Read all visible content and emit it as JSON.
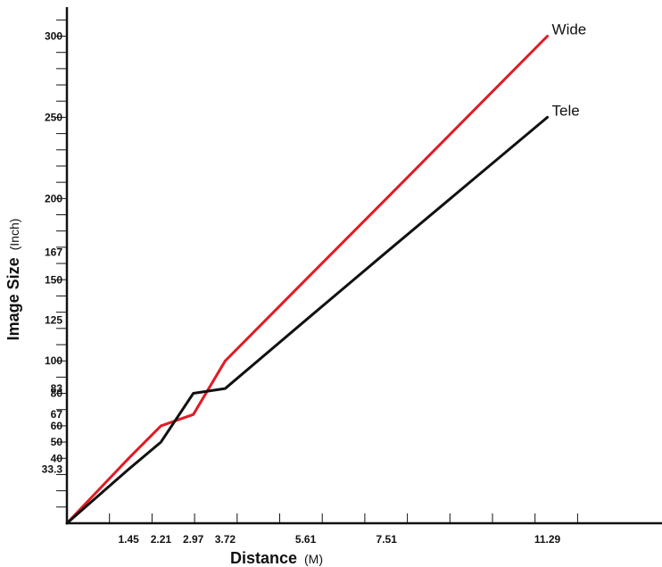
{
  "chart_data": {
    "type": "line",
    "title": "",
    "xlabel": "Distance",
    "xlabel_unit": "(M)",
    "ylabel": "Image Size",
    "ylabel_unit": "(Inch)",
    "xlim": [
      0,
      13.6
    ],
    "ylim": [
      0,
      315
    ],
    "x_tick_labels": [
      {
        "value": 1.45,
        "label": "1.45"
      },
      {
        "value": 2.21,
        "label": "2.21"
      },
      {
        "value": 2.97,
        "label": "2.97"
      },
      {
        "value": 3.72,
        "label": "3.72"
      },
      {
        "value": 5.61,
        "label": "5.61"
      },
      {
        "value": 7.51,
        "label": "7.51"
      },
      {
        "value": 11.29,
        "label": "11.29"
      }
    ],
    "x_minor_ticks": [
      1,
      2,
      3,
      4,
      5,
      6,
      7,
      8,
      9,
      10,
      11,
      12
    ],
    "y_tick_labels": [
      {
        "value": 33.3,
        "label": "33.3"
      },
      {
        "value": 40,
        "label": "40"
      },
      {
        "value": 50,
        "label": "50"
      },
      {
        "value": 60,
        "label": "60"
      },
      {
        "value": 67,
        "label": "67"
      },
      {
        "value": 80,
        "label": "80"
      },
      {
        "value": 83,
        "label": "83"
      },
      {
        "value": 100,
        "label": "100"
      },
      {
        "value": 125,
        "label": "125"
      },
      {
        "value": 150,
        "label": "150"
      },
      {
        "value": 167,
        "label": "167"
      },
      {
        "value": 200,
        "label": "200"
      },
      {
        "value": 250,
        "label": "250"
      },
      {
        "value": 300,
        "label": "300"
      }
    ],
    "y_minor_ticks": [
      10,
      20,
      30,
      40,
      50,
      60,
      70,
      80,
      90,
      100,
      110,
      120,
      130,
      140,
      150,
      160,
      170,
      180,
      190,
      200,
      210,
      220,
      230,
      240,
      250,
      260,
      270,
      280,
      290,
      300,
      310
    ],
    "series": [
      {
        "name": "Wide",
        "color": "#e01b24",
        "points": [
          [
            0,
            0
          ],
          [
            1.45,
            40
          ],
          [
            2.21,
            60
          ],
          [
            2.97,
            67
          ],
          [
            3.72,
            100
          ],
          [
            5.61,
            150
          ],
          [
            7.51,
            200
          ],
          [
            11.29,
            300
          ]
        ]
      },
      {
        "name": "Tele",
        "color": "#111111",
        "points": [
          [
            0,
            0
          ],
          [
            1.45,
            33.3
          ],
          [
            2.21,
            50
          ],
          [
            2.97,
            80
          ],
          [
            3.72,
            83
          ],
          [
            5.61,
            125
          ],
          [
            7.51,
            167
          ],
          [
            11.29,
            250
          ]
        ]
      }
    ],
    "grid": false,
    "legend": "inline labels at line ends"
  }
}
